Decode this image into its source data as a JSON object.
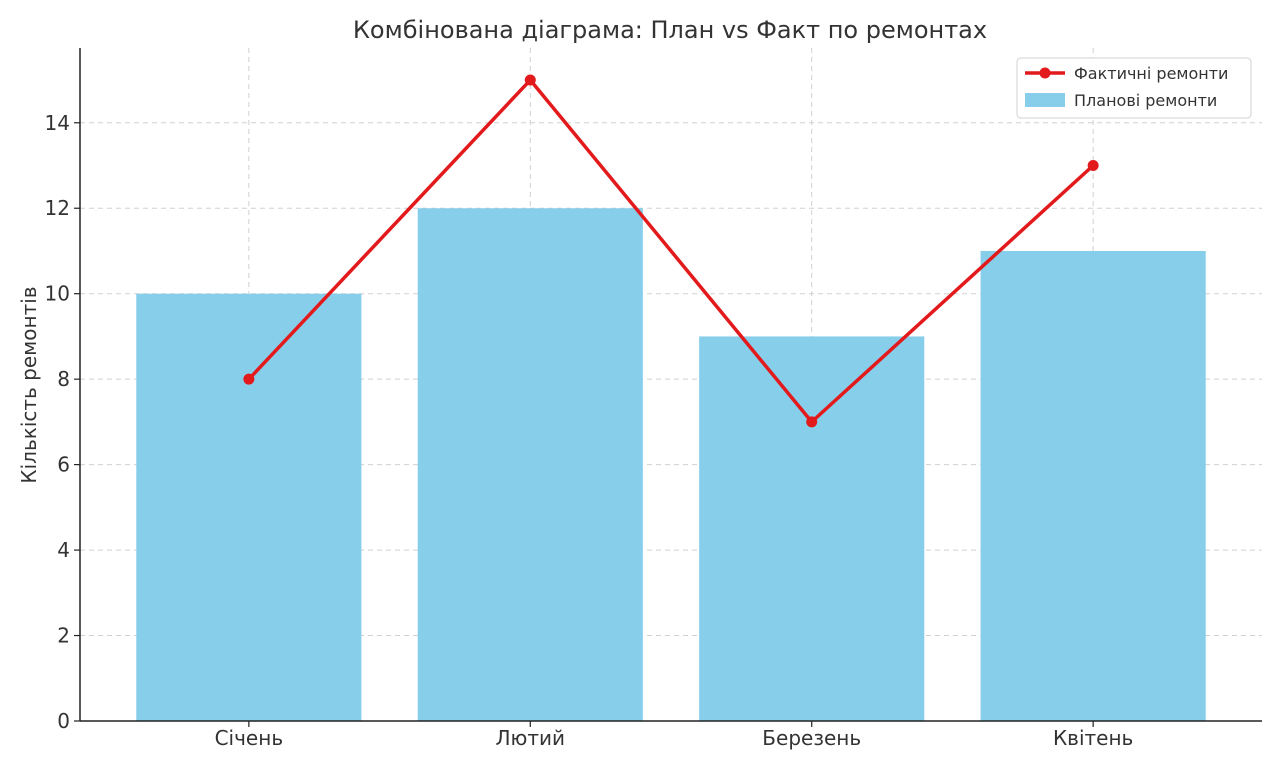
{
  "chart_data": {
    "type": "bar",
    "title": "Комбінована діаграма: План vs Факт по ремонтах",
    "xlabel": "",
    "ylabel": "Кількість ремонтів",
    "categories": [
      "Січень",
      "Лютий",
      "Березень",
      "Квітень"
    ],
    "ylim": [
      0,
      15.75
    ],
    "yticks": [
      0,
      2,
      4,
      6,
      8,
      10,
      12,
      14
    ],
    "grid": true,
    "legend_position": "top-right",
    "series": [
      {
        "name": "Фактичні ремонти",
        "type": "line",
        "color": "#e31a1c",
        "marker": "circle",
        "values": [
          8,
          15,
          7,
          13
        ]
      },
      {
        "name": "Планові ремонти",
        "type": "bar",
        "color": "#87ceeb",
        "values": [
          10,
          12,
          9,
          11
        ]
      }
    ]
  }
}
